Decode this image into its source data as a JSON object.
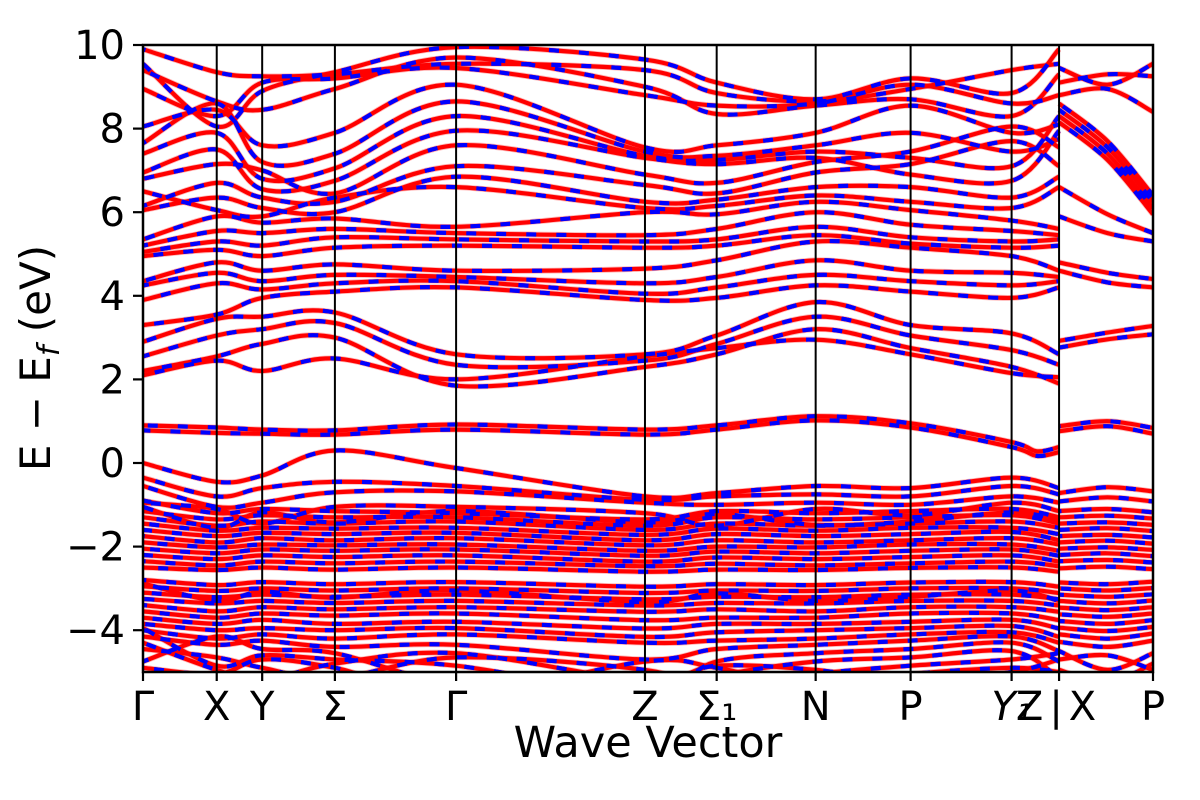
{
  "figure": {
    "background": "#ffffff"
  },
  "chart_data": {
    "type": "line",
    "subtype": "electronic-band-structure",
    "title": "",
    "xlabel": "Wave Vector",
    "ylabel": "E − Ef (eV)",
    "ylabel_parts": {
      "main": "E − E",
      "sub": "f",
      "unit": " (eV)"
    },
    "ylim": [
      -5,
      10
    ],
    "grid": "vertical-lines-at-high-symmetry-points",
    "legend": "none",
    "yticks": [
      {
        "v": 10,
        "label": "10"
      },
      {
        "v": 8,
        "label": "8"
      },
      {
        "v": 6,
        "label": "6"
      },
      {
        "v": 4,
        "label": "4"
      },
      {
        "v": 2,
        "label": "2"
      },
      {
        "v": 0,
        "label": "0"
      },
      {
        "v": -2,
        "label": "−2"
      },
      {
        "v": -4,
        "label": "−4"
      }
    ],
    "xticks": [
      {
        "pos": 0.0,
        "label": "Γ"
      },
      {
        "pos": 0.073,
        "label": "X"
      },
      {
        "pos": 0.118,
        "label": "Y"
      },
      {
        "pos": 0.19,
        "label": "Σ"
      },
      {
        "pos": 0.31,
        "label": "Γ"
      },
      {
        "pos": 0.497,
        "label": "Z"
      },
      {
        "pos": 0.568,
        "label": "Σ₁"
      },
      {
        "pos": 0.666,
        "label": "N"
      },
      {
        "pos": 0.76,
        "label": "P"
      },
      {
        "pos": 0.86,
        "label": "Y₁",
        "italic": true
      },
      {
        "pos": 0.907,
        "label": "Z|X"
      },
      {
        "pos": 1.0,
        "label": "P"
      }
    ],
    "segment_break": 0.907,
    "series": [
      {
        "name": "bands-solid",
        "color": "#ff0000",
        "line_style": "solid"
      },
      {
        "name": "bands-dashed-overlay",
        "color": "#0000ff",
        "line_style": "dashed"
      }
    ],
    "stations": [
      0.0,
      0.073,
      0.118,
      0.19,
      0.31,
      0.497,
      0.568,
      0.666,
      0.76,
      0.86,
      0.907
    ],
    "stations2": [
      0.907,
      0.955,
      1.0
    ],
    "bands": [
      {
        "y": [
          9.55,
          8.05,
          8.9,
          9.35,
          9.95,
          9.65,
          9.1,
          8.7,
          9.2,
          8.85,
          9.9
        ]
      },
      {
        "y": [
          9.9,
          9.35,
          9.25,
          9.3,
          9.55,
          9.4,
          8.85,
          8.65,
          8.95,
          9.4,
          9.55
        ]
      },
      {
        "y": [
          8.95,
          8.3,
          9.1,
          9.2,
          9.45,
          8.8,
          8.55,
          8.6,
          9.05,
          8.6,
          8.8
        ]
      },
      {
        "y": [
          9.4,
          8.65,
          8.45,
          8.95,
          9.7,
          9.0,
          8.35,
          8.55,
          8.7,
          8.3,
          9.3
        ]
      },
      {
        "y": [
          8.05,
          8.45,
          7.6,
          7.9,
          9.05,
          7.55,
          7.6,
          7.9,
          8.55,
          7.9,
          8.1
        ]
      },
      {
        "y": [
          7.65,
          8.6,
          7.2,
          7.4,
          8.65,
          7.45,
          7.35,
          7.6,
          7.9,
          7.45,
          7.75
        ]
      },
      {
        "y": [
          7.4,
          7.9,
          6.8,
          7.05,
          8.3,
          7.35,
          7.25,
          7.45,
          7.3,
          7.1,
          8.3
        ]
      },
      {
        "y": [
          6.95,
          7.5,
          6.55,
          6.75,
          7.95,
          7.3,
          7.15,
          7.3,
          6.9,
          6.75,
          7.95
        ]
      },
      {
        "y": [
          6.8,
          7.15,
          7.0,
          6.45,
          7.6,
          6.9,
          6.7,
          7.2,
          7.45,
          8.05,
          7.55
        ]
      },
      {
        "y": [
          6.15,
          6.7,
          6.35,
          6.25,
          7.1,
          6.65,
          6.45,
          6.95,
          7.15,
          7.7,
          7.1
        ]
      },
      {
        "y": [
          6.05,
          6.35,
          6.1,
          6.0,
          6.85,
          6.25,
          6.3,
          6.6,
          6.6,
          6.35,
          6.85
        ]
      },
      {
        "y": [
          6.5,
          6.05,
          5.9,
          6.35,
          6.6,
          6.1,
          6.15,
          6.4,
          6.25,
          6.1,
          6.6
        ]
      },
      {
        "y": [
          5.35,
          5.9,
          5.75,
          5.85,
          5.65,
          6.0,
          5.95,
          6.25,
          6.05,
          5.8,
          5.6
        ]
      },
      {
        "y": [
          5.2,
          5.55,
          5.5,
          5.6,
          5.5,
          5.45,
          5.6,
          6.0,
          5.7,
          5.55,
          5.45
        ]
      },
      {
        "y": [
          5.05,
          5.3,
          5.2,
          5.4,
          5.35,
          5.3,
          5.35,
          5.65,
          5.4,
          5.3,
          5.35
        ]
      },
      {
        "y": [
          4.95,
          5.1,
          4.95,
          5.15,
          5.2,
          5.15,
          5.2,
          5.45,
          5.25,
          5.15,
          5.2
        ]
      },
      {
        "y": [
          4.35,
          4.8,
          4.6,
          4.75,
          4.6,
          4.65,
          4.85,
          5.3,
          5.15,
          4.95,
          4.6
        ]
      },
      {
        "y": [
          4.25,
          4.55,
          4.35,
          4.5,
          4.45,
          4.3,
          4.45,
          4.85,
          4.6,
          4.55,
          4.45
        ]
      },
      {
        "y": [
          3.9,
          4.3,
          4.15,
          4.3,
          4.35,
          4.05,
          4.2,
          4.5,
          4.35,
          4.25,
          4.35
        ]
      },
      {
        "y": [
          3.3,
          3.55,
          3.95,
          4.1,
          4.2,
          3.9,
          3.95,
          4.25,
          4.1,
          3.95,
          4.2
        ]
      },
      {
        "y": [
          2.9,
          3.45,
          3.5,
          3.6,
          2.6,
          2.6,
          3.05,
          3.85,
          3.3,
          3.1,
          2.6
        ]
      },
      {
        "y": [
          2.55,
          3.05,
          3.2,
          3.35,
          2.35,
          2.45,
          2.85,
          3.5,
          3.05,
          2.7,
          2.35
        ]
      },
      {
        "y": [
          2.2,
          2.55,
          2.85,
          3.0,
          1.85,
          2.3,
          2.6,
          3.2,
          2.75,
          2.3,
          1.9
        ]
      },
      {
        "y": [
          2.1,
          2.45,
          2.2,
          2.5,
          2.0,
          2.55,
          2.75,
          2.95,
          2.6,
          2.15,
          2.05
        ]
      },
      {
        "x": [
          0,
          0.073,
          0.118,
          0.19,
          0.31,
          0.497,
          0.568,
          0.666,
          0.76,
          0.86,
          0.885,
          0.907
        ],
        "y": [
          0.9,
          0.85,
          0.8,
          0.78,
          0.92,
          0.8,
          0.9,
          1.12,
          0.95,
          0.5,
          0.28,
          0.38
        ]
      },
      {
        "x": [
          0,
          0.073,
          0.118,
          0.19,
          0.31,
          0.497,
          0.568,
          0.666,
          0.76,
          0.86,
          0.885,
          0.907
        ],
        "y": [
          0.78,
          0.72,
          0.7,
          0.68,
          0.8,
          0.68,
          0.8,
          1.02,
          0.85,
          0.38,
          0.17,
          0.26
        ]
      },
      {
        "y": [
          0.0,
          -0.45,
          -0.3,
          0.3,
          -0.12,
          -0.8,
          -0.72,
          -0.55,
          -0.6,
          -0.35,
          -0.6
        ]
      },
      {
        "y": [
          -0.35,
          -0.8,
          -0.6,
          -0.45,
          -0.55,
          -0.88,
          -0.8,
          -0.75,
          -0.8,
          -0.55,
          -0.75
        ]
      },
      {
        "y": [
          -0.55,
          -1.05,
          -0.95,
          -0.7,
          -0.68,
          -0.95,
          -1.0,
          -0.95,
          -1.0,
          -0.8,
          -0.95
        ]
      },
      {
        "y": [
          -0.9,
          -1.2,
          -1.1,
          -1.15,
          -1.2,
          -1.35,
          -1.15,
          -1.2,
          -1.15,
          -1.1,
          -1.3
        ]
      },
      {
        "y": [
          -1.15,
          -1.35,
          -1.25,
          -1.3,
          -1.3,
          -1.5,
          -1.3,
          -1.35,
          -1.3,
          -1.25,
          -1.45
        ]
      },
      {
        "y": [
          -1.3,
          -1.5,
          -1.4,
          -1.45,
          -1.4,
          -1.6,
          -1.45,
          -1.5,
          -1.45,
          -1.4,
          -1.55
        ]
      },
      {
        "y": [
          -1.45,
          -1.62,
          -1.55,
          -1.57,
          -1.55,
          -1.72,
          -1.57,
          -1.62,
          -1.55,
          -1.55,
          -1.7
        ]
      },
      {
        "y": [
          -1.6,
          -1.75,
          -1.67,
          -1.7,
          -1.67,
          -1.85,
          -1.7,
          -1.75,
          -1.7,
          -1.65,
          -1.85
        ]
      },
      {
        "y": [
          -1.75,
          -1.9,
          -1.8,
          -1.85,
          -1.8,
          -1.97,
          -1.85,
          -1.9,
          -1.85,
          -1.8,
          -1.95
        ]
      },
      {
        "y": [
          -1.9,
          -2.02,
          -1.95,
          -1.97,
          -1.95,
          -2.1,
          -2.0,
          -2.02,
          -1.95,
          -1.95,
          -2.1
        ]
      },
      {
        "y": [
          -2.05,
          -2.16,
          -2.07,
          -2.1,
          -2.07,
          -2.22,
          -2.12,
          -2.16,
          -2.1,
          -2.07,
          -2.22
        ]
      },
      {
        "y": [
          -2.2,
          -2.3,
          -2.21,
          -2.25,
          -2.21,
          -2.36,
          -2.26,
          -2.3,
          -2.25,
          -2.21,
          -2.36
        ]
      },
      {
        "y": [
          -2.35,
          -2.45,
          -2.36,
          -2.4,
          -2.36,
          -2.47,
          -2.41,
          -2.45,
          -2.4,
          -2.36,
          -2.47
        ]
      },
      {
        "y": [
          -2.5,
          -2.56,
          -2.5,
          -2.55,
          -2.5,
          -2.6,
          -2.55,
          -2.56,
          -2.51,
          -2.5,
          -2.6
        ]
      },
      {
        "y": [
          -0.95,
          -1.1,
          -1.45,
          -1.05,
          -1.05,
          -1.2,
          -1.5,
          -1.1,
          -1.25,
          -0.95,
          -1.15
        ]
      },
      {
        "y": [
          -1.05,
          -1.55,
          -1.18,
          -1.42,
          -1.15,
          -1.42,
          -1.22,
          -1.48,
          -1.4,
          -1.18,
          -1.38
        ]
      },
      {
        "y": [
          -2.8,
          -2.92,
          -2.85,
          -2.9,
          -2.85,
          -2.96,
          -2.9,
          -2.92,
          -2.86,
          -2.85,
          -2.96
        ]
      },
      {
        "y": [
          -2.95,
          -3.06,
          -3.0,
          -3.05,
          -3.0,
          -3.11,
          -3.05,
          -3.06,
          -3.0,
          -3.0,
          -3.11
        ]
      },
      {
        "y": [
          -3.1,
          -3.21,
          -3.15,
          -3.2,
          -3.15,
          -3.26,
          -3.2,
          -3.21,
          -3.15,
          -3.15,
          -3.26
        ]
      },
      {
        "y": [
          -3.25,
          -3.36,
          -3.3,
          -3.35,
          -3.3,
          -3.41,
          -3.35,
          -3.36,
          -3.3,
          -3.3,
          -3.41
        ]
      },
      {
        "y": [
          -3.4,
          -3.55,
          -3.45,
          -3.5,
          -3.45,
          -3.56,
          -3.5,
          -3.55,
          -3.45,
          -3.45,
          -3.56
        ]
      },
      {
        "y": [
          -3.55,
          -3.7,
          -3.6,
          -3.65,
          -3.6,
          -3.76,
          -3.7,
          -3.7,
          -3.6,
          -3.6,
          -3.76
        ]
      },
      {
        "y": [
          -3.7,
          -3.85,
          -3.75,
          -3.85,
          -3.8,
          -3.96,
          -3.85,
          -3.85,
          -3.8,
          -3.75,
          -3.96
        ]
      },
      {
        "y": [
          -3.85,
          -4.0,
          -3.95,
          -4.0,
          -3.95,
          -4.16,
          -4.05,
          -4.0,
          -3.95,
          -3.9,
          -4.16
        ]
      },
      {
        "y": [
          -4.0,
          -4.2,
          -4.1,
          -4.2,
          -4.1,
          -4.3,
          -4.25,
          -4.2,
          -4.1,
          -4.05,
          -4.3
        ]
      },
      {
        "y": [
          -4.15,
          -4.35,
          -4.25,
          -4.4,
          -4.35,
          -4.7,
          -4.45,
          -4.35,
          -4.25,
          -4.15,
          -4.5
        ]
      },
      {
        "y": [
          -2.88,
          -3.3,
          -3.08,
          -3.22,
          -3.05,
          -3.33,
          -3.12,
          -3.3,
          -3.2,
          -3.05,
          -3.3
        ]
      },
      {
        "y": [
          -3.95,
          -4.85,
          -4.6,
          -4.7,
          -4.85,
          -5.5,
          -4.75,
          -4.55,
          -4.45,
          -4.3,
          -4.75
        ]
      },
      {
        "y": [
          -4.75,
          -4.15,
          -4.45,
          -4.55,
          -5.3,
          -5.6,
          -5.1,
          -4.75,
          -4.65,
          -4.5,
          -5.15
        ]
      },
      {
        "y": [
          -4.45,
          -4.65,
          -4.9,
          -5.15,
          -4.65,
          -4.95,
          -5.45,
          -5.05,
          -4.85,
          -4.7,
          -4.55
        ]
      },
      {
        "y": [
          -4.9,
          -5.05,
          -4.7,
          -4.9,
          -5.55,
          -4.75,
          -4.9,
          -5.35,
          -5.05,
          -4.9,
          -5.0
        ]
      },
      {
        "y": [
          -4.3,
          -4.95,
          -5.2,
          -4.8,
          -4.55,
          -5.2,
          -4.85,
          -4.95,
          -5.25,
          -5.0,
          -4.7
        ]
      },
      {
        "s": 2,
        "y": [
          9.45,
          9.05,
          9.55
        ]
      },
      {
        "s": 2,
        "y": [
          9.1,
          9.3,
          9.25
        ]
      },
      {
        "s": 2,
        "y": [
          8.8,
          8.95,
          8.4
        ]
      },
      {
        "s": 2,
        "y": [
          8.6,
          7.7,
          6.4
        ]
      },
      {
        "s": 2,
        "y": [
          8.45,
          7.55,
          6.25
        ]
      },
      {
        "s": 2,
        "y": [
          8.3,
          7.4,
          6.1
        ]
      },
      {
        "s": 2,
        "y": [
          8.15,
          7.25,
          5.95
        ]
      },
      {
        "s": 2,
        "y": [
          6.6,
          5.95,
          5.5
        ]
      },
      {
        "s": 2,
        "y": [
          5.9,
          5.5,
          5.3
        ]
      },
      {
        "s": 2,
        "y": [
          4.8,
          4.55,
          4.4
        ]
      },
      {
        "s": 2,
        "y": [
          4.6,
          4.32,
          4.2
        ]
      },
      {
        "s": 2,
        "y": [
          2.92,
          3.12,
          3.28
        ]
      },
      {
        "s": 2,
        "y": [
          2.76,
          2.96,
          3.08
        ]
      },
      {
        "s": 2,
        "y": [
          0.88,
          1.0,
          0.84
        ]
      },
      {
        "s": 2,
        "y": [
          0.76,
          0.88,
          0.7
        ]
      },
      {
        "s": 2,
        "y": [
          -0.72,
          -0.58,
          -0.68
        ]
      },
      {
        "s": 2,
        "y": [
          -0.92,
          -0.82,
          -0.92
        ]
      },
      {
        "s": 2,
        "y": [
          -1.15,
          -1.1,
          -1.18
        ]
      },
      {
        "s": 2,
        "y": [
          -1.3,
          -1.26,
          -1.33
        ]
      },
      {
        "s": 2,
        "y": [
          -1.45,
          -1.42,
          -1.48
        ]
      },
      {
        "s": 2,
        "y": [
          -1.6,
          -1.56,
          -1.63
        ]
      },
      {
        "s": 2,
        "y": [
          -1.75,
          -1.72,
          -1.78
        ]
      },
      {
        "s": 2,
        "y": [
          -1.9,
          -1.86,
          -1.93
        ]
      },
      {
        "s": 2,
        "y": [
          -2.05,
          -2.02,
          -2.08
        ]
      },
      {
        "s": 2,
        "y": [
          -2.2,
          -2.16,
          -2.23
        ]
      },
      {
        "s": 2,
        "y": [
          -2.35,
          -2.32,
          -2.38
        ]
      },
      {
        "s": 2,
        "y": [
          -2.52,
          -2.48,
          -2.54
        ]
      },
      {
        "s": 2,
        "y": [
          -2.86,
          -2.9,
          -2.84
        ]
      },
      {
        "s": 2,
        "y": [
          -3.0,
          -3.05,
          -2.99
        ]
      },
      {
        "s": 2,
        "y": [
          -3.15,
          -3.2,
          -3.14
        ]
      },
      {
        "s": 2,
        "y": [
          -3.3,
          -3.36,
          -3.29
        ]
      },
      {
        "s": 2,
        "y": [
          -3.46,
          -3.52,
          -3.45
        ]
      },
      {
        "s": 2,
        "y": [
          -3.62,
          -3.68,
          -3.6
        ]
      },
      {
        "s": 2,
        "y": [
          -3.78,
          -3.85,
          -3.76
        ]
      },
      {
        "s": 2,
        "y": [
          -3.94,
          -4.02,
          -3.92
        ]
      },
      {
        "s": 2,
        "y": [
          -4.1,
          -4.2,
          -4.08
        ]
      },
      {
        "s": 2,
        "y": [
          -4.28,
          -4.4,
          -4.25
        ]
      },
      {
        "s": 2,
        "y": [
          -4.5,
          -4.95,
          -4.55
        ]
      },
      {
        "s": 2,
        "y": [
          -4.7,
          -4.6,
          -4.95
        ]
      },
      {
        "s": 2,
        "y": [
          -4.95,
          -5.25,
          -4.8
        ]
      }
    ]
  }
}
